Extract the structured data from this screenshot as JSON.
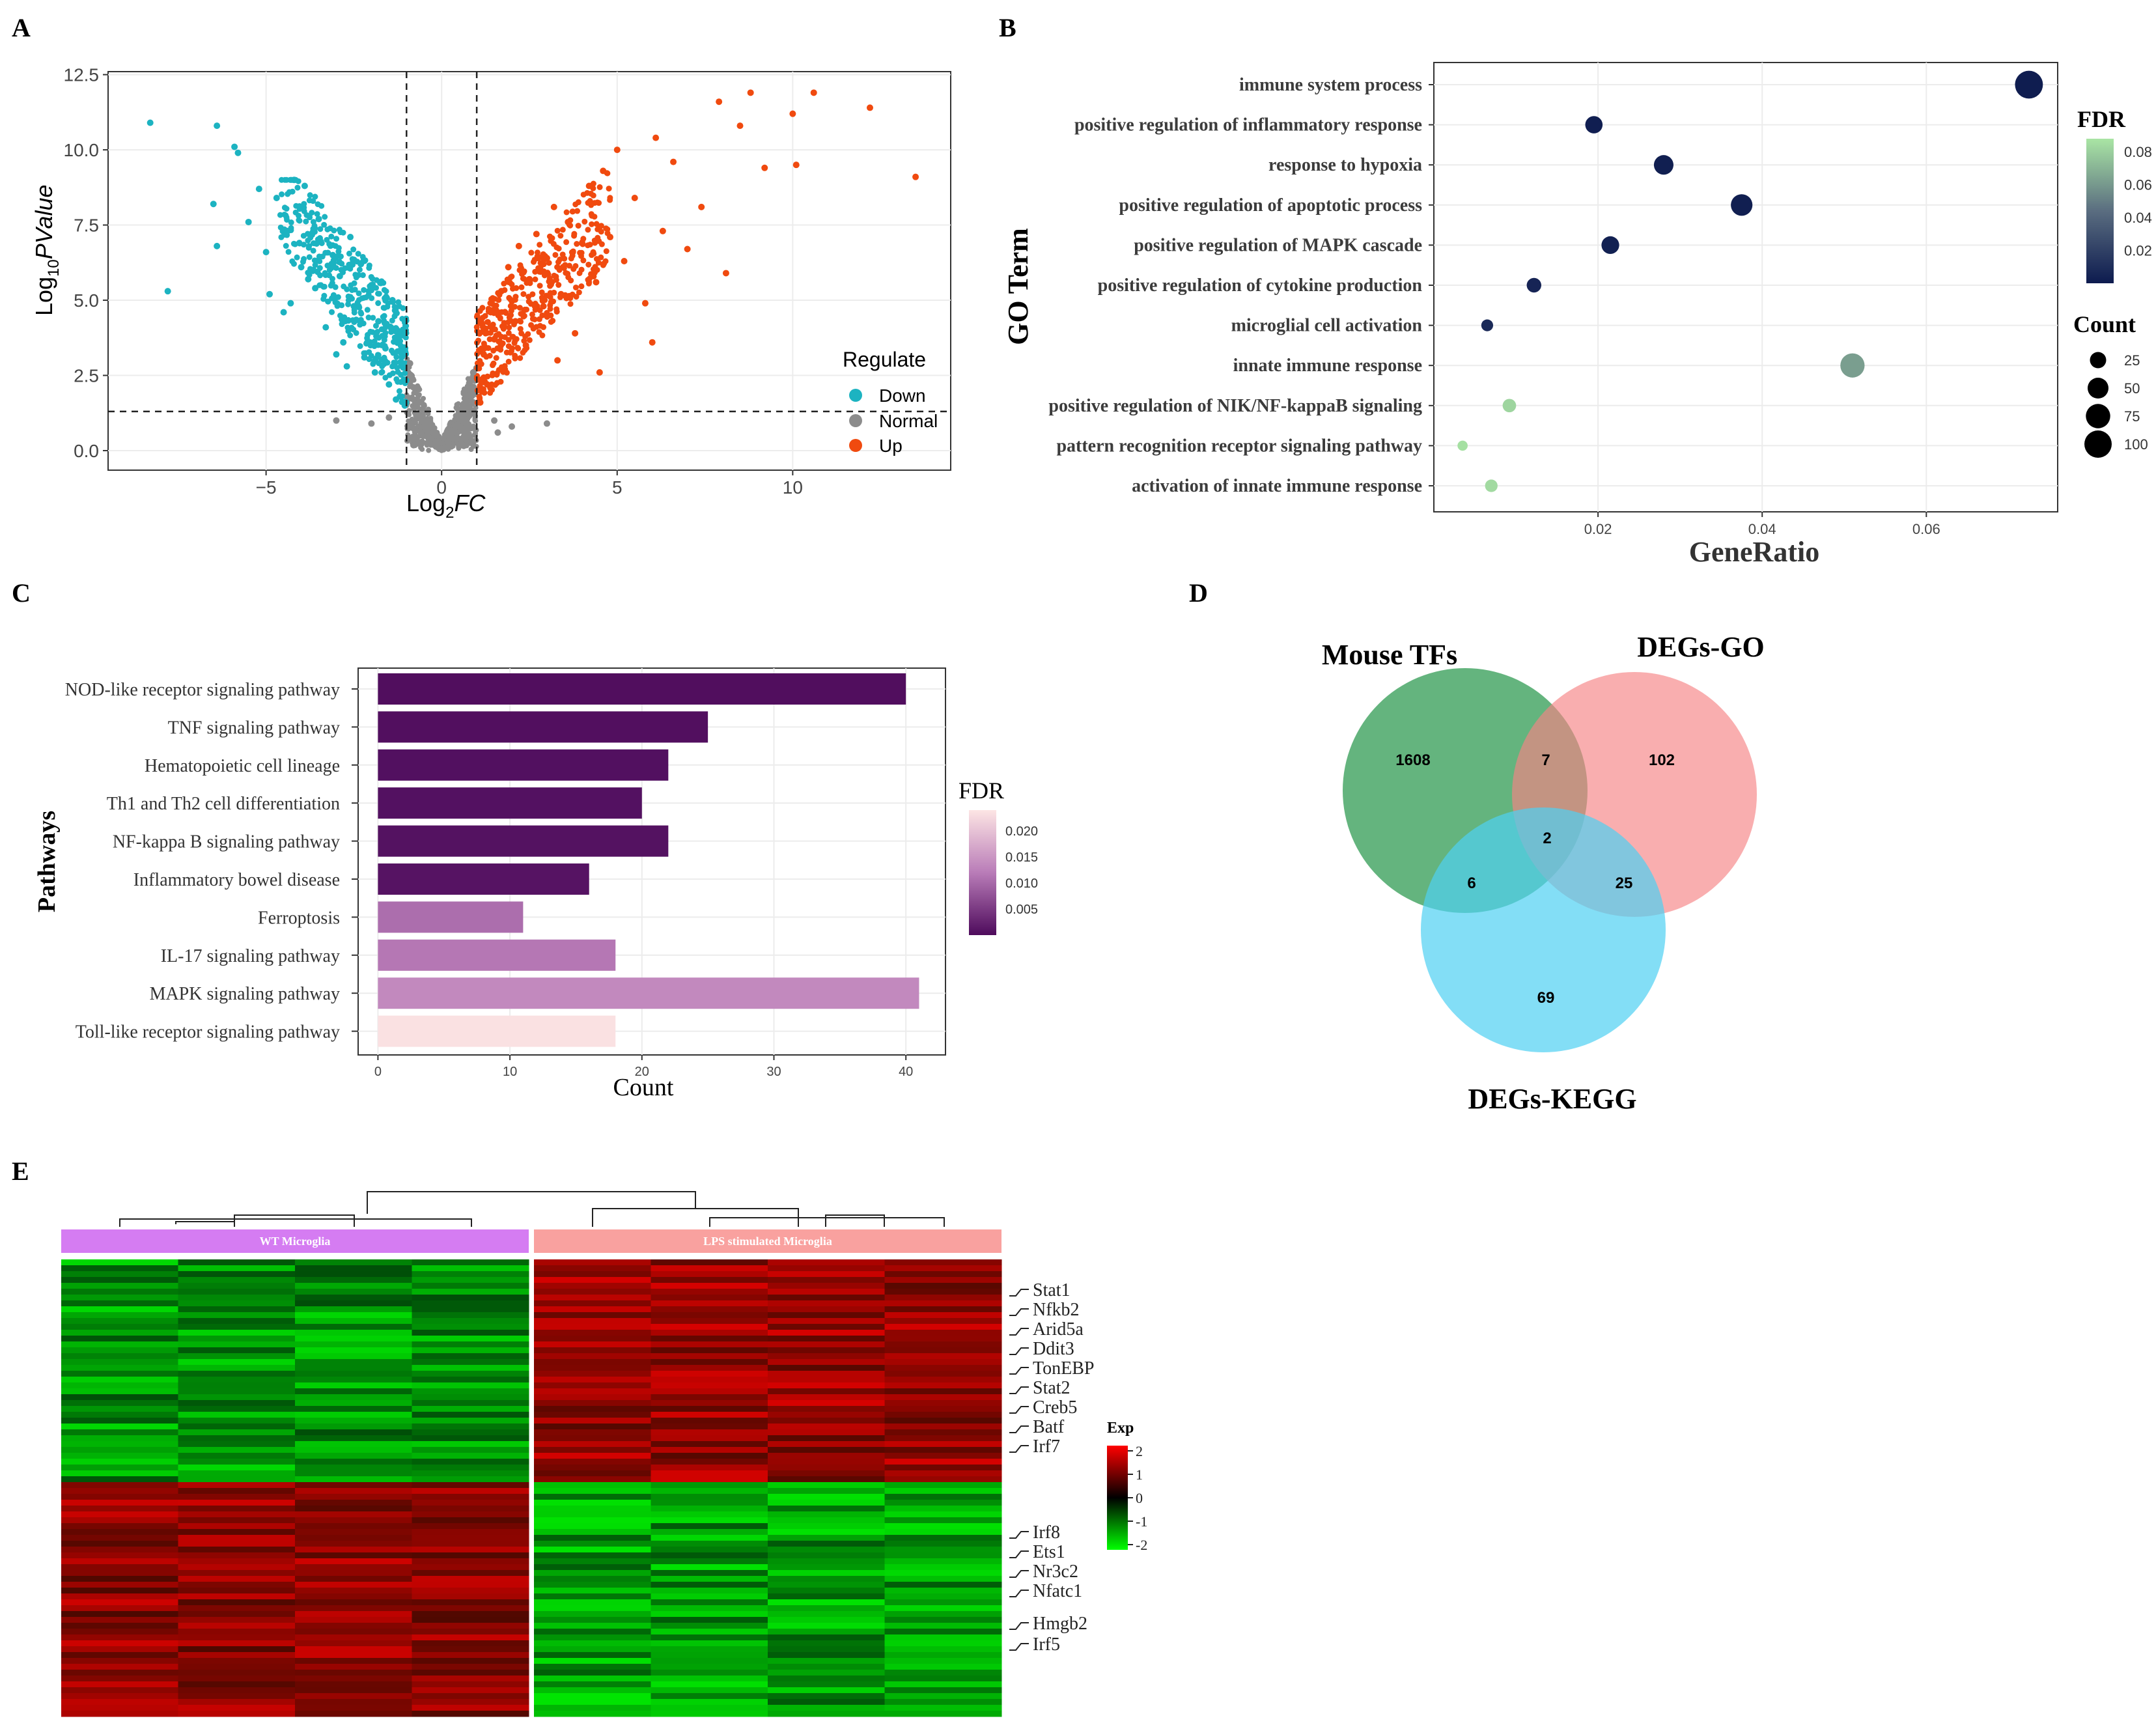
{
  "panels": {
    "A": "A",
    "B": "B",
    "C": "C",
    "D": "D",
    "E": "E"
  },
  "chart_data": [
    {
      "id": "A",
      "type": "scatter",
      "title": "",
      "xlabel_main": "Log",
      "xlabel_sub": "2",
      "xlabel_tail": "FC",
      "ylabel_main": "Log",
      "ylabel_sub": "10",
      "ylabel_tail": "PValue",
      "xlim": [
        -9.5,
        14.5
      ],
      "ylim": [
        -0.65,
        12.6
      ],
      "xticks": [
        -5,
        0,
        5,
        10
      ],
      "yticks": [
        0.0,
        2.5,
        5.0,
        7.5,
        10.0,
        12.5
      ],
      "xtick_labels": [
        "−5",
        "0",
        "5",
        "10"
      ],
      "ytick_labels": [
        "0.0",
        "2.5",
        "5.0",
        "7.5",
        "10.0",
        "12.5"
      ],
      "thresholds": {
        "log2fc": [
          -1,
          1
        ],
        "log10p": 1.3
      },
      "legend": {
        "title": "Regulate",
        "entries": [
          {
            "label": "Down",
            "color": "#1cb3c1"
          },
          {
            "label": "Normal",
            "color": "#8c8c8c"
          },
          {
            "label": "Up",
            "color": "#f04a0f"
          }
        ]
      },
      "series": [
        {
          "name": "Down",
          "color": "#1cb3c1",
          "points": [
            [
              -8.3,
              10.9
            ],
            [
              -7.8,
              5.3
            ],
            [
              -6.4,
              10.8
            ],
            [
              -6.5,
              8.2
            ],
            [
              -6.4,
              6.8
            ],
            [
              -5.9,
              10.1
            ],
            [
              -5.8,
              9.9
            ],
            [
              -5.5,
              7.6
            ],
            [
              -5.2,
              8.7
            ],
            [
              -5.0,
              6.6
            ],
            [
              -4.9,
              5.2
            ],
            [
              -4.7,
              8.4
            ],
            [
              -4.5,
              4.6
            ],
            [
              -4.4,
              7.3
            ],
            [
              -4.2,
              9.0
            ],
            [
              -4.0,
              6.1
            ],
            [
              -3.9,
              8.8
            ],
            [
              -3.6,
              5.4
            ],
            [
              -3.5,
              7.7
            ],
            [
              -3.3,
              4.1
            ],
            [
              -3.1,
              6.5
            ],
            [
              -2.9,
              5.8
            ],
            [
              -2.8,
              3.6
            ],
            [
              -2.6,
              7.1
            ],
            [
              -2.5,
              4.8
            ],
            [
              -2.3,
              6.2
            ],
            [
              -2.2,
              3.1
            ],
            [
              -2.0,
              5.5
            ],
            [
              -1.9,
              2.6
            ],
            [
              -1.8,
              4.3
            ],
            [
              -1.6,
              3.4
            ],
            [
              -1.5,
              2.2
            ],
            [
              -1.4,
              5.0
            ],
            [
              -1.3,
              1.7
            ],
            [
              -1.2,
              3.8
            ],
            [
              -1.1,
              2.9
            ],
            [
              -1.05,
              1.5
            ],
            [
              -3.0,
              3.2
            ],
            [
              -2.7,
              2.8
            ],
            [
              -3.8,
              5.7
            ],
            [
              -4.3,
              4.9
            ]
          ]
        },
        {
          "name": "Normal",
          "color": "#8c8c8c",
          "points": [
            [
              -0.9,
              2.9
            ],
            [
              -0.8,
              2.1
            ],
            [
              -0.7,
              1.5
            ],
            [
              -0.6,
              1.1
            ],
            [
              -0.5,
              0.8
            ],
            [
              -0.4,
              0.6
            ],
            [
              -0.3,
              0.4
            ],
            [
              -0.2,
              0.2
            ],
            [
              -0.1,
              0.1
            ],
            [
              0.0,
              0.05
            ],
            [
              0.1,
              0.1
            ],
            [
              0.2,
              0.25
            ],
            [
              0.3,
              0.4
            ],
            [
              0.4,
              0.6
            ],
            [
              0.5,
              0.8
            ],
            [
              0.6,
              1.0
            ],
            [
              0.7,
              1.4
            ],
            [
              0.8,
              2.0
            ],
            [
              0.9,
              2.6
            ],
            [
              -1.5,
              1.1
            ],
            [
              -2.0,
              0.9
            ],
            [
              1.5,
              1.0
            ],
            [
              2.0,
              0.8
            ],
            [
              -3.0,
              1.0
            ],
            [
              3.0,
              0.9
            ],
            [
              1.6,
              0.6
            ]
          ]
        },
        {
          "name": "Up",
          "color": "#f04a0f",
          "points": [
            [
              1.1,
              1.6
            ],
            [
              1.2,
              3.2
            ],
            [
              1.3,
              2.2
            ],
            [
              1.4,
              4.6
            ],
            [
              1.5,
              3.7
            ],
            [
              1.7,
              5.3
            ],
            [
              1.8,
              2.7
            ],
            [
              1.9,
              6.1
            ],
            [
              2.1,
              4.3
            ],
            [
              2.2,
              6.8
            ],
            [
              2.4,
              3.5
            ],
            [
              2.5,
              5.7
            ],
            [
              2.7,
              7.2
            ],
            [
              2.9,
              4.8
            ],
            [
              3.0,
              6.4
            ],
            [
              3.2,
              8.1
            ],
            [
              3.4,
              5.2
            ],
            [
              3.6,
              7.6
            ],
            [
              3.8,
              3.9
            ],
            [
              4.0,
              6.9
            ],
            [
              4.2,
              8.8
            ],
            [
              4.4,
              5.6
            ],
            [
              4.6,
              9.3
            ],
            [
              4.8,
              7.1
            ],
            [
              5.0,
              10.0
            ],
            [
              5.2,
              6.3
            ],
            [
              5.5,
              8.4
            ],
            [
              5.8,
              4.9
            ],
            [
              6.1,
              10.4
            ],
            [
              6.3,
              7.3
            ],
            [
              6.6,
              9.6
            ],
            [
              7.0,
              6.7
            ],
            [
              7.4,
              8.1
            ],
            [
              7.9,
              11.6
            ],
            [
              8.1,
              5.9
            ],
            [
              8.5,
              10.8
            ],
            [
              8.8,
              11.9
            ],
            [
              9.2,
              9.4
            ],
            [
              10.0,
              11.2
            ],
            [
              10.1,
              9.5
            ],
            [
              10.6,
              11.9
            ],
            [
              12.2,
              11.4
            ],
            [
              13.5,
              9.1
            ],
            [
              6.0,
              3.6
            ],
            [
              4.5,
              2.6
            ],
            [
              3.3,
              3.0
            ]
          ]
        }
      ]
    },
    {
      "id": "B",
      "type": "scatter",
      "title": "",
      "xlabel": "GeneRatio",
      "ylabel": "GO Term",
      "xlim": [
        0.0,
        0.076
      ],
      "xticks": [
        0.02,
        0.04,
        0.06
      ],
      "xtick_labels": [
        "0.02",
        "0.04",
        "0.06"
      ],
      "categories": [
        "immune system process",
        "positive regulation of inflammatory response",
        "response to hypoxia",
        "positive regulation of apoptotic process",
        "positive regulation of MAPK cascade",
        "positive regulation of cytokine production",
        "microglial cell activation",
        "innate immune response",
        "positive regulation of NIK/NF-kappaB signaling",
        "pattern recognition receptor signaling pathway",
        "activation of innate immune response"
      ],
      "gene_ratio": [
        0.0725,
        0.0195,
        0.028,
        0.0375,
        0.0215,
        0.0122,
        0.0065,
        0.051,
        0.0092,
        0.0035,
        0.007
      ],
      "count": [
        105,
        30,
        42,
        55,
        32,
        18,
        9,
        74,
        14,
        5,
        11
      ],
      "fdr": [
        0.001,
        0.0015,
        0.002,
        0.002,
        0.003,
        0.005,
        0.008,
        0.062,
        0.082,
        0.086,
        0.084
      ],
      "legend_fdr": {
        "title": "FDR",
        "ticks": [
          0.02,
          0.04,
          0.06,
          0.08
        ],
        "tick_labels": [
          "0.02",
          "0.04",
          "0.06",
          "0.08"
        ],
        "range": [
          0.0,
          0.088
        ]
      },
      "legend_count": {
        "title": "Count",
        "values": [
          25,
          50,
          75,
          100
        ],
        "labels": [
          "25",
          "50",
          "75",
          "100"
        ]
      }
    },
    {
      "id": "C",
      "type": "bar",
      "title": "",
      "xlabel": "Count",
      "ylabel": "Pathways",
      "xlim": [
        -1.5,
        43
      ],
      "xticks": [
        0,
        10,
        20,
        30,
        40
      ],
      "xtick_labels": [
        "0",
        "10",
        "20",
        "30",
        "40"
      ],
      "categories": [
        "NOD-like receptor signaling pathway",
        "TNF signaling pathway",
        "Hematopoietic cell lineage",
        "Th1 and Th2 cell differentiation",
        "NF-kappa B signaling pathway",
        "Inflammatory bowel disease",
        "Ferroptosis",
        "IL-17 signaling pathway",
        "MAPK signaling pathway",
        "Toll-like receptor signaling pathway"
      ],
      "values": [
        40,
        25,
        22,
        20,
        22,
        16,
        11,
        18,
        41,
        18
      ],
      "fdr": [
        0.0003,
        0.0004,
        0.0005,
        0.0006,
        0.0007,
        0.0009,
        0.0105,
        0.0115,
        0.0135,
        0.0235
      ],
      "legend": {
        "title": "FDR",
        "ticks": [
          0.005,
          0.01,
          0.015,
          0.02
        ],
        "tick_labels": [
          "0.005",
          "0.010",
          "0.015",
          "0.020"
        ],
        "range": [
          0.0,
          0.024
        ]
      }
    },
    {
      "id": "D",
      "type": "venn",
      "sets": [
        {
          "name": "Mouse TFs",
          "color": "#3da15e"
        },
        {
          "name": "DEGs-GO",
          "color": "#f68384"
        },
        {
          "name": "DEGs-KEGG",
          "color": "#4fd0f2"
        }
      ],
      "regions": {
        "tf_only": 1608,
        "go_only": 102,
        "kegg_only": 69,
        "tf_go": 7,
        "tf_kegg": 6,
        "go_kegg": 25,
        "all": 2
      }
    },
    {
      "id": "E",
      "type": "heatmap",
      "groups": [
        {
          "name": "WT Microglia",
          "color": "#d57cf2",
          "columns": 4
        },
        {
          "name": "LPS stimulated Microglia",
          "color": "#f9a19f",
          "columns": 4
        }
      ],
      "up_in_lps_rows": 38,
      "down_in_lps_rows": 40,
      "genes": [
        "Stat1",
        "Nfkb2",
        "Arid5a",
        "Ddit3",
        "TonEBP",
        "Stat2",
        "Creb5",
        "Batf",
        "Irf7",
        "Irf8",
        "Ets1",
        "Nr3c2",
        "Nfatc1",
        "Hmgb2",
        "Irf5"
      ],
      "legend": {
        "title": "Exp",
        "ticks": [
          2,
          1,
          0,
          -1,
          -2
        ],
        "tick_labels": [
          "2",
          "1",
          "0",
          "-1",
          "-2"
        ]
      }
    }
  ]
}
